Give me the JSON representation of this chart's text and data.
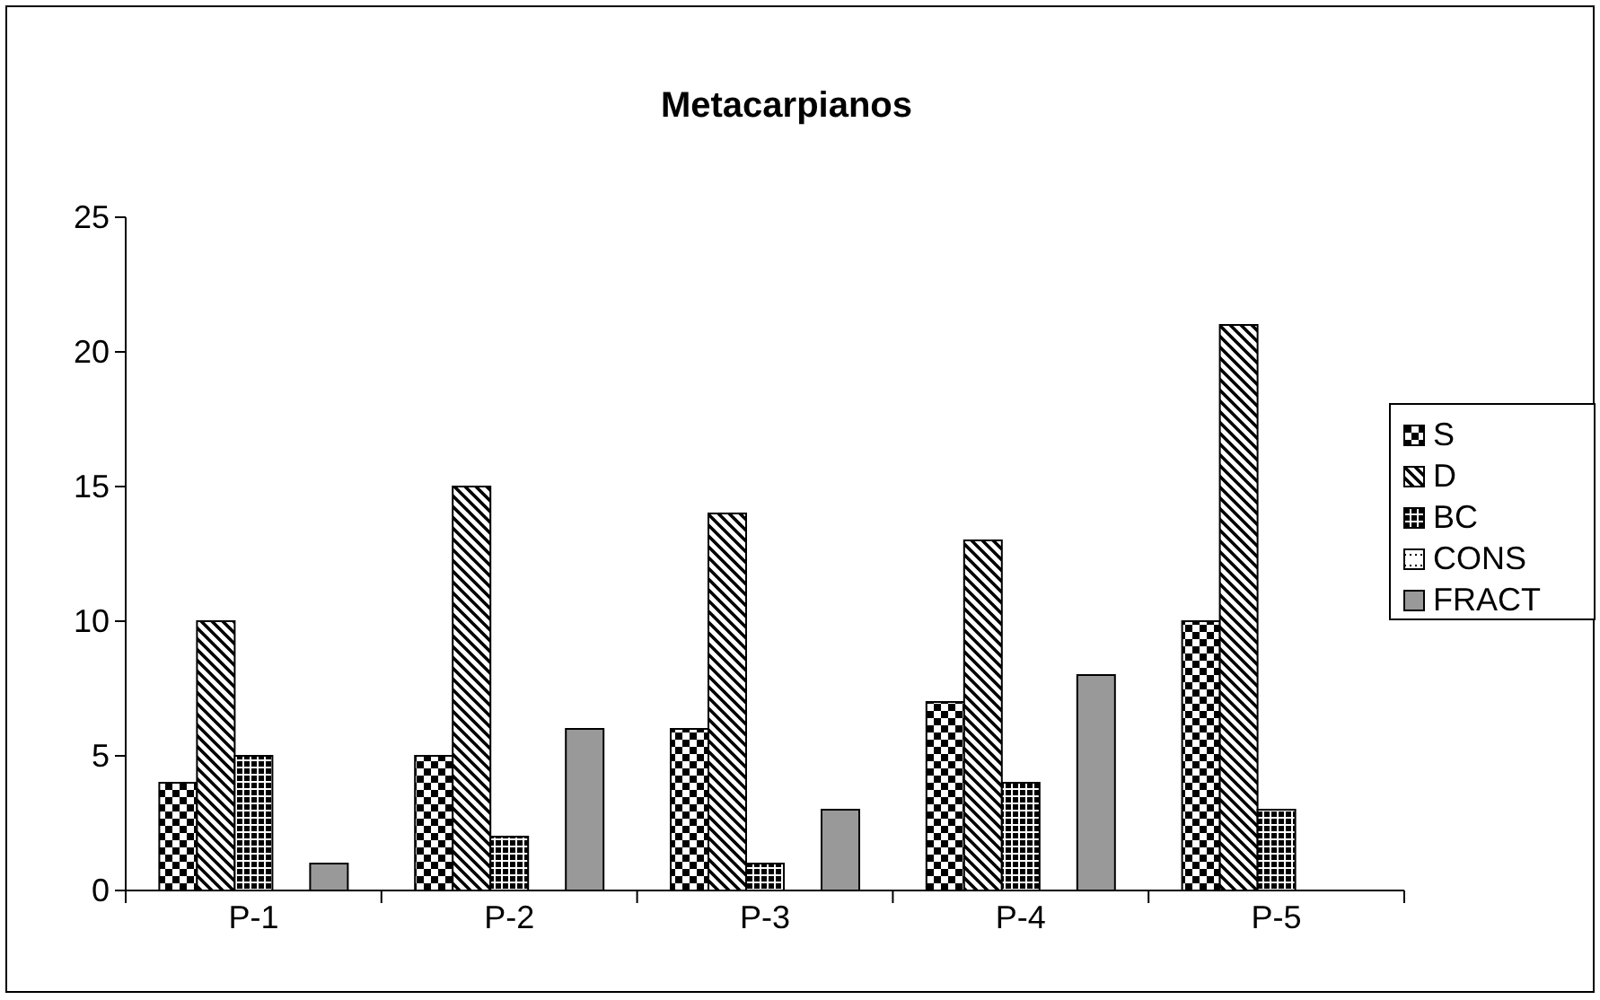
{
  "chart_data": {
    "type": "bar",
    "title": "Metacarpianos",
    "categories": [
      "P-1",
      "P-2",
      "P-3",
      "P-4",
      "P-5"
    ],
    "series": [
      {
        "name": "S",
        "color": "#000000",
        "values": [
          4,
          5,
          6,
          7,
          10
        ]
      },
      {
        "name": "D",
        "color": "#000000",
        "values": [
          10,
          15,
          14,
          13,
          21
        ]
      },
      {
        "name": "BC",
        "color": "#000000",
        "values": [
          5,
          2,
          1,
          4,
          3
        ]
      },
      {
        "name": "CONS",
        "color": "#000000",
        "values": [
          0,
          0,
          0,
          0,
          0
        ]
      },
      {
        "name": "FRACT",
        "color": "#999999",
        "values": [
          1,
          6,
          3,
          8,
          0
        ]
      }
    ],
    "ylim": [
      0,
      25
    ],
    "yticks": [
      0,
      5,
      10,
      15,
      20,
      25
    ],
    "grid": false,
    "legend": "right"
  }
}
